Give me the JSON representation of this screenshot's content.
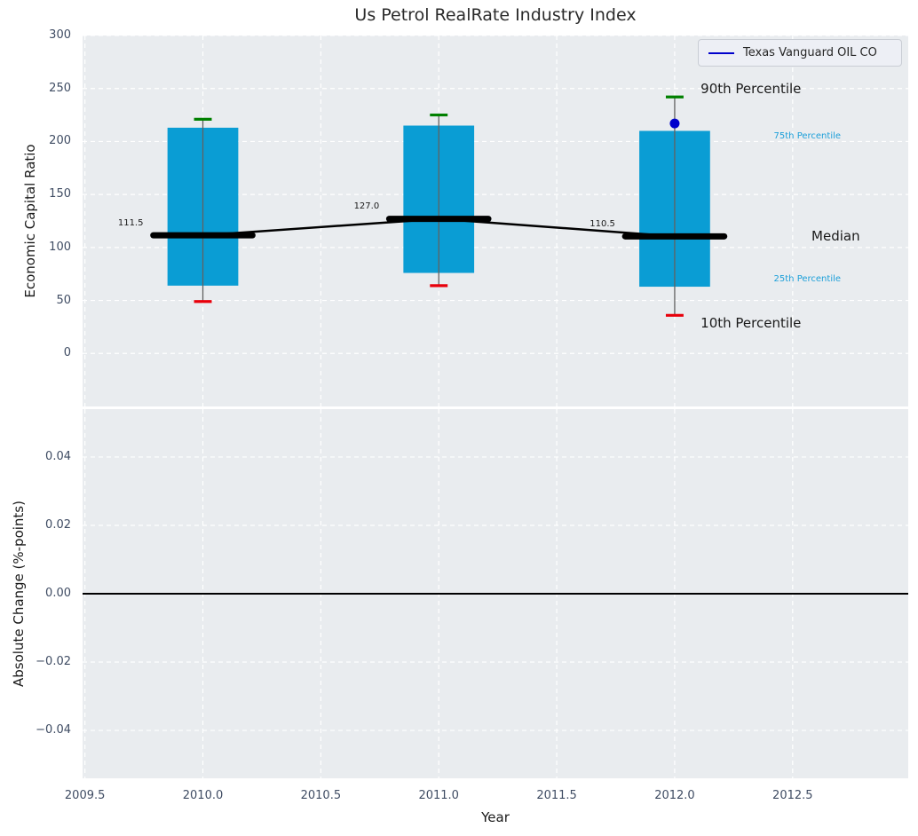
{
  "title": "Us Petrol RealRate Industry Index",
  "chart_data": [
    {
      "type": "box",
      "title": "Us Petrol RealRate Industry Index",
      "ylabel": "Economic Capital Ratio",
      "xlabel": "Year",
      "legend": {
        "label": "Texas Vanguard OIL CO",
        "position": "upper right",
        "line_color": "#0000cc"
      },
      "xlim": [
        2009.49,
        2012.99
      ],
      "ylim": [
        -50,
        300
      ],
      "grid": true,
      "yticks": [
        {
          "v": 300,
          "label": "300"
        },
        {
          "v": 250,
          "label": "250"
        },
        {
          "v": 200,
          "label": "200"
        },
        {
          "v": 150,
          "label": "150"
        },
        {
          "v": 100,
          "label": "100"
        },
        {
          "v": 50,
          "label": "50"
        },
        {
          "v": 0,
          "label": "0"
        }
      ],
      "xticks": [
        {
          "v": 2009.5,
          "label": "2009.5"
        },
        {
          "v": 2010.0,
          "label": "2010.0"
        },
        {
          "v": 2010.5,
          "label": "2010.5"
        },
        {
          "v": 2011.0,
          "label": "2011.0"
        },
        {
          "v": 2011.5,
          "label": "2011.5"
        },
        {
          "v": 2012.0,
          "label": "2012.0"
        },
        {
          "v": 2012.5,
          "label": "2012.5"
        }
      ],
      "boxes": [
        {
          "year": 2010,
          "p10": 49,
          "p25": 64,
          "median": 111.5,
          "p75": 213,
          "p90": 221,
          "median_label": "111.5"
        },
        {
          "year": 2011,
          "p10": 64,
          "p25": 76,
          "median": 127.0,
          "p75": 215,
          "p90": 225,
          "median_label": "127.0"
        },
        {
          "year": 2012,
          "p10": 36,
          "p25": 63,
          "median": 110.5,
          "p75": 210,
          "p90": 242,
          "median_label": "110.5"
        }
      ],
      "company_point": {
        "year": 2012,
        "value": 217
      },
      "annotations": [
        {
          "text": "90th Percentile",
          "x": 2012.11,
          "y": 250,
          "size": 15,
          "color": "#1a1a1a"
        },
        {
          "text": "75th Percentile",
          "x": 2012.42,
          "y": 205,
          "size": 10,
          "color": "#1c9fd9"
        },
        {
          "text": "Median",
          "x": 2012.58,
          "y": 110.5,
          "size": 15,
          "color": "#1a1a1a"
        },
        {
          "text": "25th Percentile",
          "x": 2012.42,
          "y": 70,
          "size": 10,
          "color": "#1c9fd9"
        },
        {
          "text": "10th Percentile",
          "x": 2012.11,
          "y": 29,
          "size": 15,
          "color": "#1a1a1a"
        }
      ],
      "colors": {
        "box_fill": "#0a9dd4",
        "median_line": "#000000",
        "whisker": "#616161",
        "cap_top": "#008000",
        "cap_bottom": "#e8000b",
        "company_point": "#0000cc",
        "plot_bg": "#e9ecef",
        "grid": "#ffffff",
        "tick_label": "#3f4c63"
      }
    },
    {
      "type": "line",
      "ylabel": "Absolute Change (%-points)",
      "ylim": [
        -0.054,
        0.054
      ],
      "yticks": [
        {
          "v": 0.04,
          "label": "0.04"
        },
        {
          "v": 0.02,
          "label": "0.02"
        },
        {
          "v": 0,
          "label": "0.00"
        },
        {
          "v": -0.02,
          "label": "−0.02"
        },
        {
          "v": -0.04,
          "label": "−0.04"
        }
      ],
      "zero_line": {
        "value": 0.0,
        "color": "#000000"
      },
      "series": []
    }
  ]
}
